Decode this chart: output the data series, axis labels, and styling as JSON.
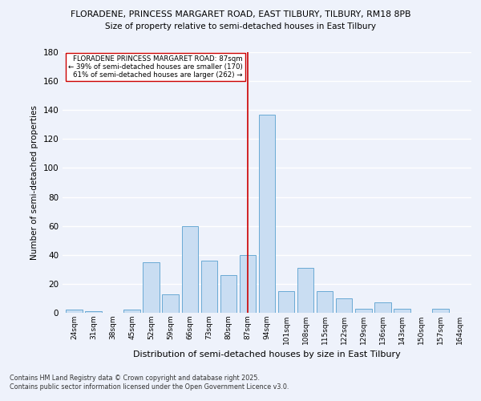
{
  "title_line1": "FLORADENE, PRINCESS MARGARET ROAD, EAST TILBURY, TILBURY, RM18 8PB",
  "title_line2": "Size of property relative to semi-detached houses in East Tilbury",
  "xlabel": "Distribution of semi-detached houses by size in East Tilbury",
  "ylabel": "Number of semi-detached properties",
  "categories": [
    "24sqm",
    "31sqm",
    "38sqm",
    "45sqm",
    "52sqm",
    "59sqm",
    "66sqm",
    "73sqm",
    "80sqm",
    "87sqm",
    "94sqm",
    "101sqm",
    "108sqm",
    "115sqm",
    "122sqm",
    "129sqm",
    "136sqm",
    "143sqm",
    "150sqm",
    "157sqm",
    "164sqm"
  ],
  "values": [
    2,
    1,
    0,
    2,
    35,
    13,
    60,
    36,
    26,
    40,
    137,
    15,
    31,
    15,
    10,
    3,
    7,
    3,
    0,
    3,
    0
  ],
  "bar_color": "#c9ddf2",
  "bar_edge_color": "#6aaad4",
  "vline_x_index": 9,
  "vline_color": "#cc0000",
  "annotation_text": "FLORADENE PRINCESS MARGARET ROAD: 87sqm\n← 39% of semi-detached houses are smaller (170)\n61% of semi-detached houses are larger (262) →",
  "annotation_box_color": "white",
  "annotation_box_edge": "#cc0000",
  "ylim": [
    0,
    180
  ],
  "yticks": [
    0,
    20,
    40,
    60,
    80,
    100,
    120,
    140,
    160,
    180
  ],
  "background_color": "#eef2fb",
  "grid_color": "white",
  "footnote_line1": "Contains HM Land Registry data © Crown copyright and database right 2025.",
  "footnote_line2": "Contains public sector information licensed under the Open Government Licence v3.0."
}
